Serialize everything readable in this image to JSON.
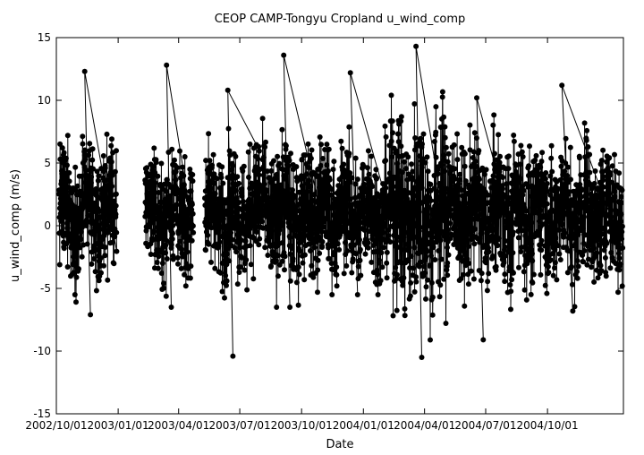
{
  "chart_data": {
    "type": "scatter",
    "title": "CEOP CAMP-Tongyu Cropland  u_wind_comp",
    "xlabel": "Date",
    "ylabel": "u_wind_comp (m/s)",
    "xlim": [
      "2002-10-01",
      "2005-01-22"
    ],
    "ylim": [
      -15,
      15
    ],
    "x_ticks": [
      "2002/10/01",
      "2003/01/01",
      "2003/04/01",
      "2003/07/01",
      "2003/10/01",
      "2004/01/01",
      "2004/04/01",
      "2004/07/01",
      "2004/10/01"
    ],
    "y_ticks": [
      -15,
      -10,
      -5,
      0,
      5,
      10,
      15
    ],
    "grid": false,
    "legend": "none",
    "marker_color": "#000000",
    "segments": [
      {
        "start": "2002-10-05",
        "end": "2002-12-29",
        "min": -7.1,
        "max": 12.3,
        "spread": 4.2
      },
      {
        "start": "2003-02-10",
        "end": "2003-04-22",
        "min": -6.5,
        "max": 12.8,
        "spread": 4.0
      },
      {
        "start": "2003-05-10",
        "end": "2003-07-25",
        "min": -10.4,
        "max": 10.8,
        "spread": 4.2
      },
      {
        "start": "2003-07-25",
        "end": "2003-10-25",
        "min": -6.5,
        "max": 13.6,
        "spread": 4.5
      },
      {
        "start": "2003-10-25",
        "end": "2004-02-10",
        "min": -5.5,
        "max": 12.2,
        "spread": 4.2
      },
      {
        "start": "2004-02-10",
        "end": "2004-05-05",
        "min": -10.5,
        "max": 14.3,
        "spread": 6.5
      },
      {
        "start": "2004-05-05",
        "end": "2004-08-10",
        "min": -9.1,
        "max": 10.2,
        "spread": 4.8
      },
      {
        "start": "2004-08-10",
        "end": "2005-01-20",
        "min": -6.8,
        "max": 11.2,
        "spread": 4.5
      }
    ]
  }
}
